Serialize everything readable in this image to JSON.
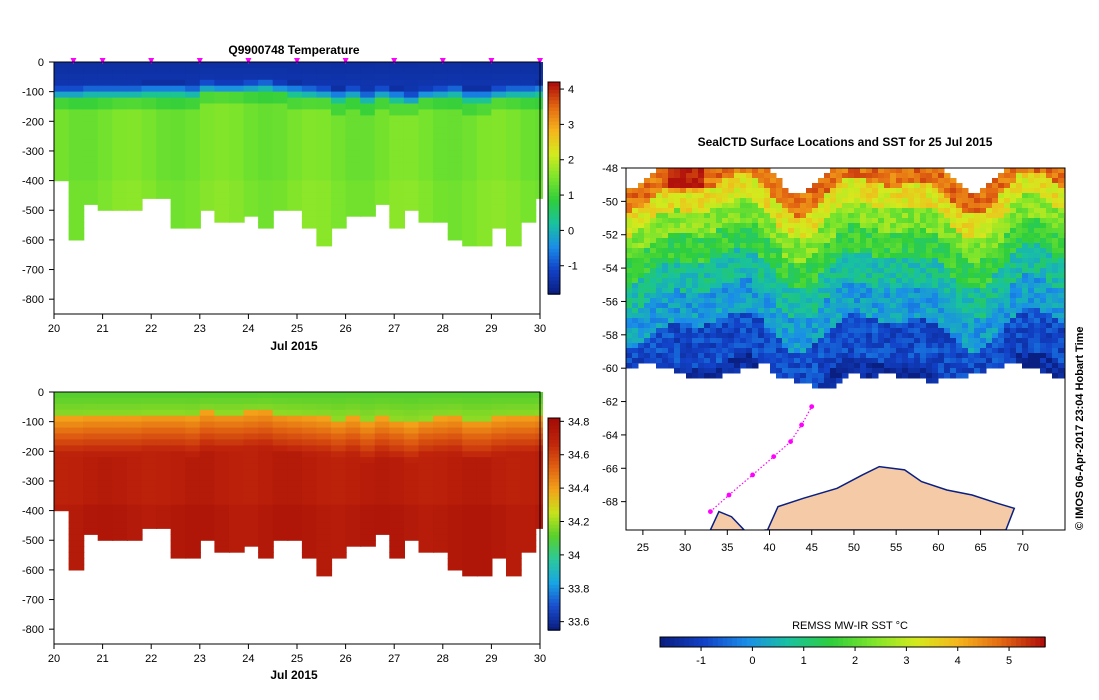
{
  "chart_data": [
    {
      "type": "heatmap",
      "title": "Q9900748  Temperature",
      "xlabel": "Jul 2015",
      "ylabel": "",
      "x_ticks": [
        "20",
        "21",
        "22",
        "23",
        "24",
        "25",
        "26",
        "27",
        "28",
        "29",
        "30"
      ],
      "xlim": [
        20,
        30
      ],
      "y_ticks": [
        "0",
        "-100",
        "-200",
        "-300",
        "-400",
        "-500",
        "-600",
        "-700",
        "-800"
      ],
      "ylim": [
        -850,
        0
      ],
      "colorbar": {
        "ticks": [
          "-1",
          "0",
          "1",
          "2",
          "3",
          "4"
        ],
        "range": [
          -1.8,
          4.2
        ]
      },
      "surface_markers": [
        20.4,
        21,
        22,
        23,
        24,
        25,
        26,
        27,
        28,
        29,
        30
      ],
      "profiles": {
        "time": [
          20.0,
          20.3,
          20.6,
          20.9,
          21.2,
          21.5,
          21.8,
          22.1,
          22.4,
          22.7,
          23.0,
          23.3,
          23.6,
          23.9,
          24.2,
          24.5,
          24.8,
          25.1,
          25.4,
          25.7,
          26.0,
          26.3,
          26.6,
          26.9,
          27.2,
          27.5,
          27.8,
          28.1,
          28.4,
          28.7,
          29.0,
          29.3,
          29.6,
          29.9
        ],
        "max_depth": [
          400,
          590,
          480,
          500,
          500,
          500,
          460,
          460,
          550,
          550,
          500,
          530,
          530,
          510,
          550,
          500,
          500,
          550,
          610,
          560,
          510,
          510,
          470,
          550,
          500,
          530,
          530,
          590,
          620,
          620,
          550,
          610,
          540,
          460
        ],
        "thermocline_depth": [
          100,
          100,
          95,
          95,
          95,
          95,
          90,
          90,
          90,
          95,
          80,
          85,
          85,
          80,
          75,
          85,
          90,
          95,
          100,
          110,
          100,
          115,
          100,
          110,
          120,
          105,
          100,
          95,
          110,
          110,
          100,
          95,
          95,
          90
        ]
      },
      "values": {
        "surface": -1.5,
        "thermocline": 0.0,
        "deep": 1.45
      }
    },
    {
      "type": "heatmap",
      "title": "",
      "xlabel": "Jul 2015",
      "ylabel": "",
      "x_ticks": [
        "20",
        "21",
        "22",
        "23",
        "24",
        "25",
        "26",
        "27",
        "28",
        "29",
        "30"
      ],
      "xlim": [
        20,
        30
      ],
      "y_ticks": [
        "0",
        "-100",
        "-200",
        "-300",
        "-400",
        "-500",
        "-600",
        "-700",
        "-800"
      ],
      "ylim": [
        -850,
        0
      ],
      "colorbar": {
        "ticks": [
          "33.6",
          "33.8",
          "34",
          "34.2",
          "34.4",
          "34.6",
          "34.8"
        ],
        "range": [
          33.55,
          34.82
        ]
      },
      "values": {
        "surface": 34.1,
        "deep": 34.72
      }
    },
    {
      "type": "heatmap",
      "title": "SealCTD Surface Locations and SST for 25 Jul 2015",
      "xlabel": "",
      "ylabel": "",
      "x_ticks": [
        "25",
        "30",
        "35",
        "40",
        "45",
        "50",
        "55",
        "60",
        "65",
        "70"
      ],
      "xlim": [
        23,
        75
      ],
      "y_ticks": [
        "-48",
        "-50",
        "-52",
        "-54",
        "-56",
        "-58",
        "-60",
        "-62",
        "-64",
        "-66",
        "-68"
      ],
      "ylim": [
        -69.7,
        -48
      ],
      "colorbar": {
        "label": "REMSS MW-IR SST °C",
        "ticks": [
          "-1",
          "0",
          "1",
          "2",
          "3",
          "4",
          "5"
        ],
        "range": [
          -1.8,
          5.7
        ]
      },
      "sst_bands": [
        {
          "lat_top": -48.0,
          "lat_bottom": -49.4,
          "sst": 4.8
        },
        {
          "lat_top": -49.4,
          "lat_bottom": -50.8,
          "sst": 3.4
        },
        {
          "lat_top": -50.8,
          "lat_bottom": -52.2,
          "sst": 2.4
        },
        {
          "lat_top": -52.2,
          "lat_bottom": -53.8,
          "sst": 1.6
        },
        {
          "lat_top": -53.8,
          "lat_bottom": -55.6,
          "sst": 0.7
        },
        {
          "lat_top": -55.6,
          "lat_bottom": -57.6,
          "sst": 0.1
        },
        {
          "lat_top": -57.6,
          "lat_bottom": -60.2,
          "sst": -0.9
        },
        {
          "lat_top": -60.2,
          "lat_bottom": -61.2,
          "sst": -1.5
        }
      ],
      "seal_track": [
        [
          33.0,
          -68.6
        ],
        [
          35.2,
          -67.6
        ],
        [
          38.0,
          -66.4
        ],
        [
          40.5,
          -65.3
        ],
        [
          42.5,
          -64.4
        ],
        [
          43.8,
          -63.4
        ],
        [
          45.0,
          -62.3
        ]
      ],
      "copyright": "© IMOS 06-Apr-2017 23:04 Hobart Time"
    }
  ],
  "colors": {
    "temp_scale": [
      "#0a1f82",
      "#1242c8",
      "#1a8ee8",
      "#19c29e",
      "#2fce3c",
      "#7ee52b",
      "#d4ea1e",
      "#f5b51c",
      "#e46a12",
      "#b1110b"
    ],
    "salt_scale": [
      "#0a1f82",
      "#1a4fd0",
      "#18a6e3",
      "#2cc99a",
      "#58d02c",
      "#c7e31c",
      "#f3a319",
      "#e05f11",
      "#c0250b",
      "#a50d06"
    ],
    "land": "#f5cba7",
    "track": "#ff00ff",
    "ice": "#ffffff"
  }
}
